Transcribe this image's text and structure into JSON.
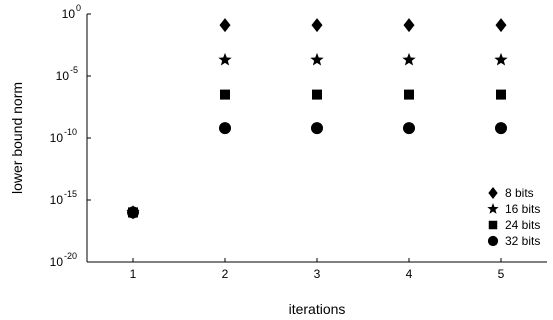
{
  "chart_data": {
    "type": "scatter",
    "xlabel": "iterations",
    "ylabel": "lower bound norm",
    "x_scale": "linear",
    "y_scale": "log",
    "xlim": [
      0.5,
      5.5
    ],
    "ylim_exponents": [
      -20,
      0
    ],
    "x_ticks": [
      1,
      2,
      3,
      4,
      5
    ],
    "y_ticks": [
      {
        "base": "10",
        "exp": "0",
        "value_exp": 0
      },
      {
        "base": "10",
        "exp": "-5",
        "value_exp": -5
      },
      {
        "base": "10",
        "exp": "-10",
        "value_exp": -10
      },
      {
        "base": "10",
        "exp": "-15",
        "value_exp": -15
      },
      {
        "base": "10",
        "exp": "-20",
        "value_exp": -20
      }
    ],
    "grid": false,
    "legend_position": "bottom-right",
    "series": [
      {
        "name": "8 bits",
        "marker": "diamond",
        "x": [
          1,
          2,
          3,
          4,
          5
        ],
        "y_exp": [
          -16,
          -0.9,
          -0.9,
          -0.9,
          -0.9
        ]
      },
      {
        "name": "16 bits",
        "marker": "star",
        "x": [
          1,
          2,
          3,
          4,
          5
        ],
        "y_exp": [
          -16,
          -3.7,
          -3.7,
          -3.7,
          -3.7
        ]
      },
      {
        "name": "24 bits",
        "marker": "square",
        "x": [
          1,
          2,
          3,
          4,
          5
        ],
        "y_exp": [
          -16,
          -6.5,
          -6.5,
          -6.5,
          -6.5
        ]
      },
      {
        "name": "32 bits",
        "marker": "circle",
        "x": [
          1,
          2,
          3,
          4,
          5
        ],
        "y_exp": [
          -16,
          -9.2,
          -9.2,
          -9.2,
          -9.2
        ]
      }
    ],
    "marker_color": "#000000"
  }
}
